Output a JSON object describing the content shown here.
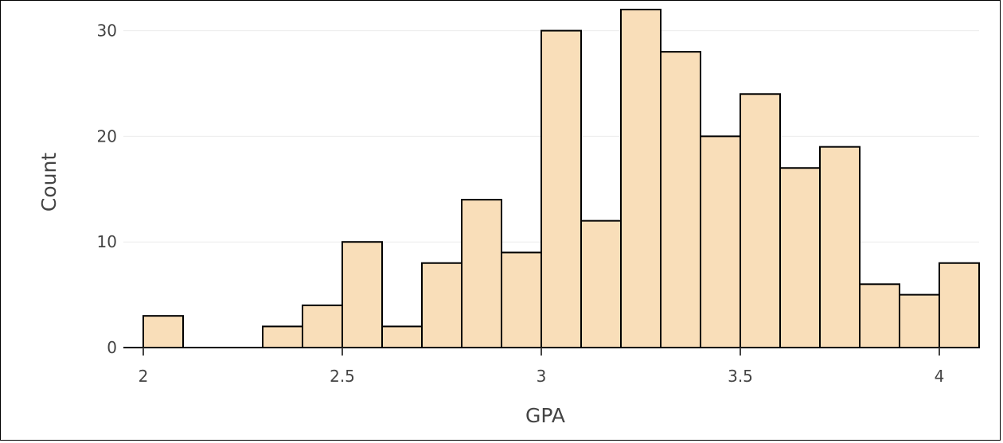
{
  "chart_data": {
    "type": "bar",
    "bin_edges": [
      2.0,
      2.1,
      2.2,
      2.3,
      2.4,
      2.5,
      2.6,
      2.7,
      2.8,
      2.9,
      3.0,
      3.1,
      3.2,
      3.3,
      3.4,
      3.5,
      3.6,
      3.7,
      3.8,
      3.9,
      4.0,
      4.1
    ],
    "values": [
      3,
      0,
      0,
      2,
      4,
      10,
      2,
      8,
      14,
      9,
      30,
      12,
      32,
      28,
      20,
      24,
      17,
      19,
      6,
      5,
      8
    ],
    "xlabel": "GPA",
    "ylabel": "Count",
    "xlim": [
      1.95,
      4.1
    ],
    "ylim": [
      0,
      32
    ],
    "xticks": [
      2,
      2.5,
      3,
      3.5,
      4
    ],
    "xtick_labels": [
      "2",
      "2.5",
      "3",
      "3.5",
      "4"
    ],
    "yticks": [
      0,
      10,
      20,
      30
    ],
    "ytick_labels": [
      "0",
      "10",
      "20",
      "30"
    ],
    "grid": true,
    "bar_color": "#f9deb9",
    "bar_edge_color": "#000000"
  }
}
